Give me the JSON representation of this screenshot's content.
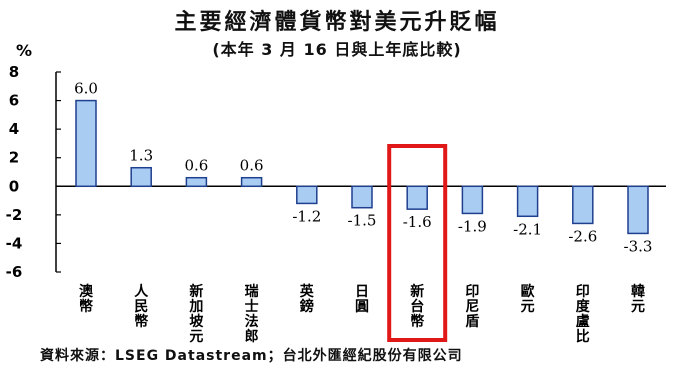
{
  "title": "主要經濟體貨幣對美元升貶幅",
  "subtitle": "(本年 3 月 16 日與上年底比較)",
  "source": "資料來源：LSEG Datastream；台北外匯經紀股份有限公司",
  "colors": {
    "bar_fill": "#a9ccf2",
    "bar_stroke": "#1f3f8f",
    "highlight_box": "#e01818",
    "axis": "#000000"
  },
  "chart_data": {
    "type": "bar",
    "ylabel": "%",
    "ylim": [
      -6,
      8
    ],
    "yticks": [
      "8",
      "6",
      "4",
      "2",
      "0",
      "-2",
      "-4",
      "-6"
    ],
    "grid": false,
    "categories": [
      "澳幣",
      "人民幣",
      "新加坡元",
      "瑞士法郎",
      "英鎊",
      "日圓",
      "新台幣",
      "印尼盾",
      "歐元",
      "印度盧比",
      "韓元"
    ],
    "values": [
      6.0,
      1.3,
      0.6,
      0.6,
      -1.2,
      -1.5,
      -1.6,
      -1.9,
      -2.1,
      -2.6,
      -3.3
    ],
    "value_labels": [
      "6.0",
      "1.3",
      "0.6",
      "0.6",
      "-1.2",
      "-1.5",
      "-1.6",
      "-1.9",
      "-2.1",
      "-2.6",
      "-3.3"
    ],
    "highlighted_category": "新台幣"
  }
}
